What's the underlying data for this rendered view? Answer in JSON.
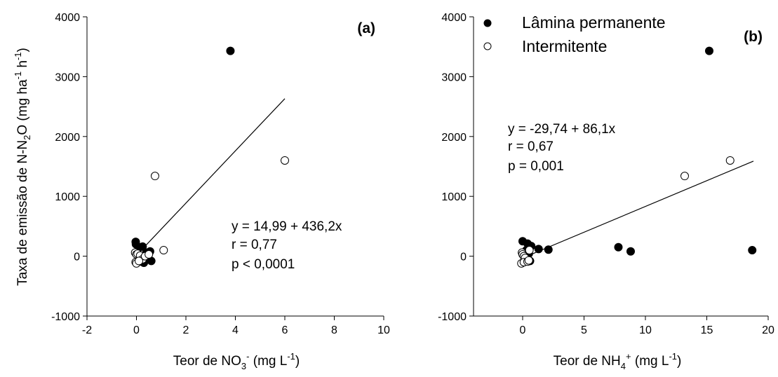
{
  "chart_data": [
    {
      "type": "scatter",
      "panel_label": "(a)",
      "ylabel": "Taxa de emissão de N-N2O (mg ha-1 h-1)",
      "xlabel": "Teor de NO3- (mg L-1)",
      "xlim": [
        -2,
        10
      ],
      "ylim": [
        -1000,
        4000
      ],
      "xticks": [
        "-2",
        "0",
        "2",
        "4",
        "6",
        "8",
        "10"
      ],
      "yticks": [
        "-1000",
        "0",
        "1000",
        "2000",
        "3000",
        "4000"
      ],
      "series": [
        {
          "name": "Lâmina permanente",
          "marker": "filled",
          "points": [
            [
              -0.03,
              240
            ],
            [
              -0.02,
              200
            ],
            [
              0.1,
              140
            ],
            [
              0.25,
              160
            ],
            [
              0.4,
              60
            ],
            [
              0.55,
              80
            ],
            [
              0.0,
              60
            ],
            [
              0.05,
              10
            ],
            [
              0.1,
              -30
            ],
            [
              0.2,
              -90
            ],
            [
              0.3,
              -110
            ],
            [
              0.5,
              -50
            ],
            [
              0.6,
              -80
            ],
            [
              3.8,
              3430
            ]
          ]
        },
        {
          "name": "Intermitente",
          "marker": "open",
          "points": [
            [
              -0.05,
              60
            ],
            [
              0.0,
              30
            ],
            [
              0.05,
              40
            ],
            [
              0.15,
              10
            ],
            [
              0.25,
              -50
            ],
            [
              0.35,
              0
            ],
            [
              -0.03,
              -100
            ],
            [
              0.0,
              -120
            ],
            [
              0.1,
              -80
            ],
            [
              0.5,
              30
            ],
            [
              0.75,
              1340
            ],
            [
              1.1,
              100
            ],
            [
              6.0,
              1600
            ]
          ]
        }
      ],
      "fit": {
        "intercept": 14.99,
        "slope": 436.2,
        "x_range": [
          0,
          6
        ]
      },
      "annotations": [
        "y = 14,99 + 436,2x",
        "r = 0,77",
        "p < 0,0001"
      ]
    },
    {
      "type": "scatter",
      "panel_label": "(b)",
      "xlabel": "Teor de NH4+ (mg L-1)",
      "xlim": [
        -4,
        20
      ],
      "ylim": [
        -1000,
        4000
      ],
      "xticks": [
        "0",
        "5",
        "10",
        "15",
        "20"
      ],
      "yticks": [
        "-1000",
        "0",
        "1000",
        "2000",
        "3000",
        "4000"
      ],
      "series": [
        {
          "name": "Lâmina permanente",
          "marker": "filled",
          "points": [
            [
              0.0,
              250
            ],
            [
              0.4,
              210
            ],
            [
              0.7,
              170
            ],
            [
              1.3,
              120
            ],
            [
              2.1,
              110
            ],
            [
              0.3,
              100
            ],
            [
              0.5,
              40
            ],
            [
              0.2,
              -50
            ],
            [
              0.6,
              -80
            ],
            [
              7.8,
              150
            ],
            [
              8.8,
              80
            ],
            [
              15.2,
              3430
            ],
            [
              18.7,
              100
            ]
          ]
        },
        {
          "name": "Intermitente",
          "marker": "open",
          "points": [
            [
              -0.05,
              60
            ],
            [
              0.0,
              30
            ],
            [
              0.1,
              0
            ],
            [
              0.2,
              -30
            ],
            [
              -0.1,
              -120
            ],
            [
              0.1,
              -100
            ],
            [
              0.4,
              -90
            ],
            [
              0.5,
              -70
            ],
            [
              0.55,
              100
            ],
            [
              13.2,
              1340
            ],
            [
              16.9,
              1600
            ]
          ]
        }
      ],
      "fit": {
        "intercept": -29.74,
        "slope": 86.1,
        "x_range": [
          0,
          18.8
        ]
      },
      "annotations": [
        "y = -29,74 + 86,1x",
        "r = 0,67",
        "p = 0,001"
      ],
      "legend": {
        "placement": "top-left",
        "entries": [
          "Lâmina permanente",
          "Intermitente"
        ]
      }
    }
  ]
}
